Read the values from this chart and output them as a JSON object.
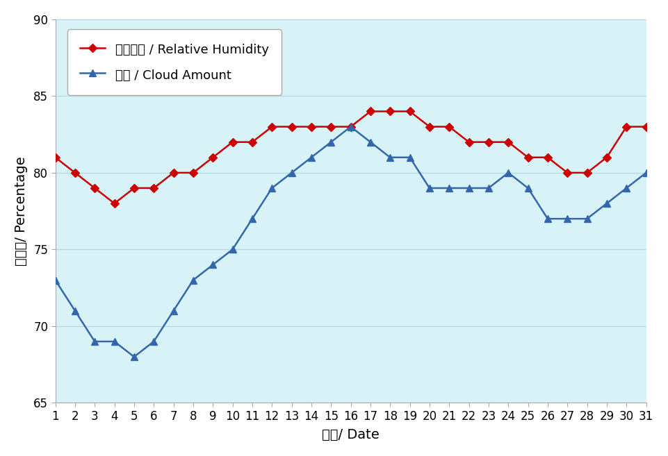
{
  "days": [
    1,
    2,
    3,
    4,
    5,
    6,
    7,
    8,
    9,
    10,
    11,
    12,
    13,
    14,
    15,
    16,
    17,
    18,
    19,
    20,
    21,
    22,
    23,
    24,
    25,
    26,
    27,
    28,
    29,
    30,
    31
  ],
  "humidity": [
    81,
    80,
    79,
    78,
    79,
    79,
    80,
    80,
    81,
    82,
    82,
    83,
    83,
    83,
    83,
    83,
    84,
    84,
    84,
    83,
    83,
    82,
    82,
    82,
    81,
    81,
    80,
    80,
    81,
    83,
    83
  ],
  "cloud": [
    73,
    71,
    69,
    69,
    68,
    69,
    71,
    73,
    74,
    75,
    77,
    79,
    80,
    81,
    82,
    83,
    82,
    81,
    81,
    79,
    79,
    79,
    79,
    80,
    79,
    77,
    77,
    77,
    78,
    79,
    80
  ],
  "humidity_color": "#cc0000",
  "cloud_color": "#3366aa",
  "plot_bg_color": "#d8f3f8",
  "fig_bg_color": "#ffffff",
  "legend_bg_color": "#ffffff",
  "ylabel": "百分比/ Percentage",
  "xlabel": "日期/ Date",
  "legend1": "相對濕度 / Relative Humidity",
  "legend2": "雲量 / Cloud Amount",
  "ylim_min": 65,
  "ylim_max": 90,
  "yticks": [
    65,
    70,
    75,
    80,
    85,
    90
  ],
  "grid_color": "#b0d8e8",
  "spine_color": "#aaaaaa",
  "tick_label_size": 12,
  "axis_label_size": 14
}
